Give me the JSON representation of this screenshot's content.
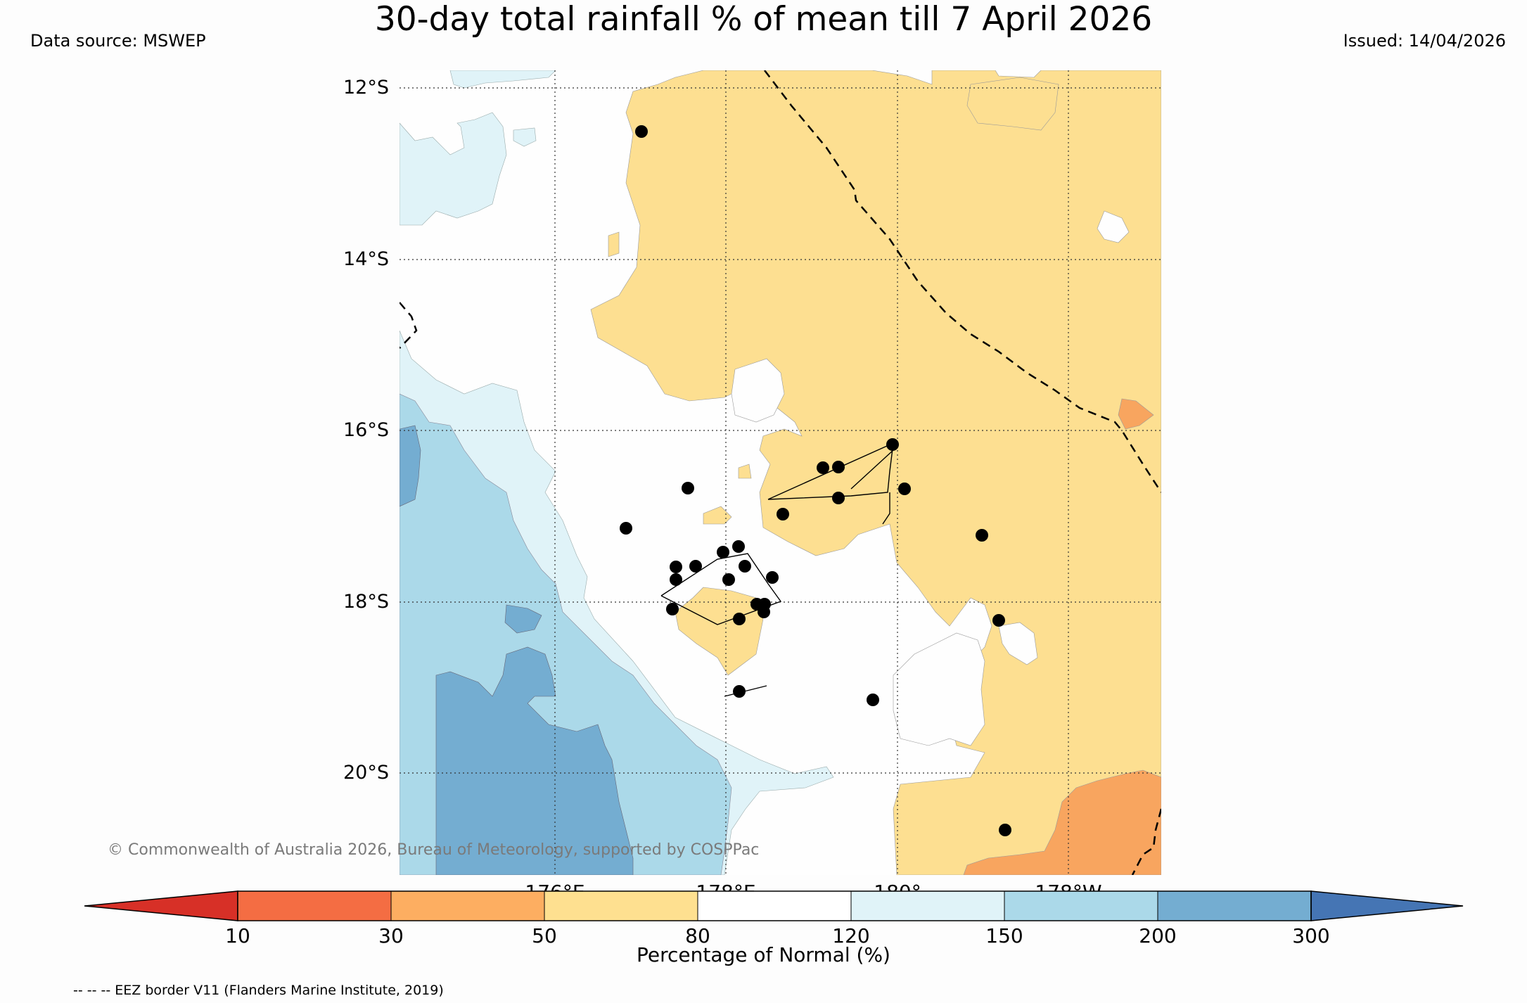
{
  "title": "30-day total rainfall % of mean till 7 April 2026",
  "data_source": "Data source: MSWEP",
  "issued": "Issued: 14/04/2026",
  "copyright": "© Commonwealth of Australia 2026, Bureau of Meteorology, supported by COSPPac",
  "latitude_labels": [
    "12°S",
    "14°S",
    "16°S",
    "18°S",
    "20°S"
  ],
  "longitude_labels": [
    "176°E",
    "178°E",
    "180°",
    "178°W"
  ],
  "colorbar": {
    "title": "Percentage of Normal (%)",
    "ticks": [
      "10",
      "30",
      "50",
      "80",
      "120",
      "150",
      "200",
      "300"
    ],
    "colors": [
      "#d73027",
      "#f46d43",
      "#fdae61",
      "#fee090",
      "#ffffff",
      "#e0f3f8",
      "#abd9e9",
      "#74add1",
      "#4575b4"
    ]
  },
  "eez_note": "-- -- -- EEZ border V11 (Flanders Marine Institute, 2019)",
  "colors": {
    "very_dry": "#f8a55f",
    "dry": "#fddf91",
    "wet1": "#e0f3f8",
    "wet2": "#abd9e9",
    "wet3": "#74add1"
  }
}
